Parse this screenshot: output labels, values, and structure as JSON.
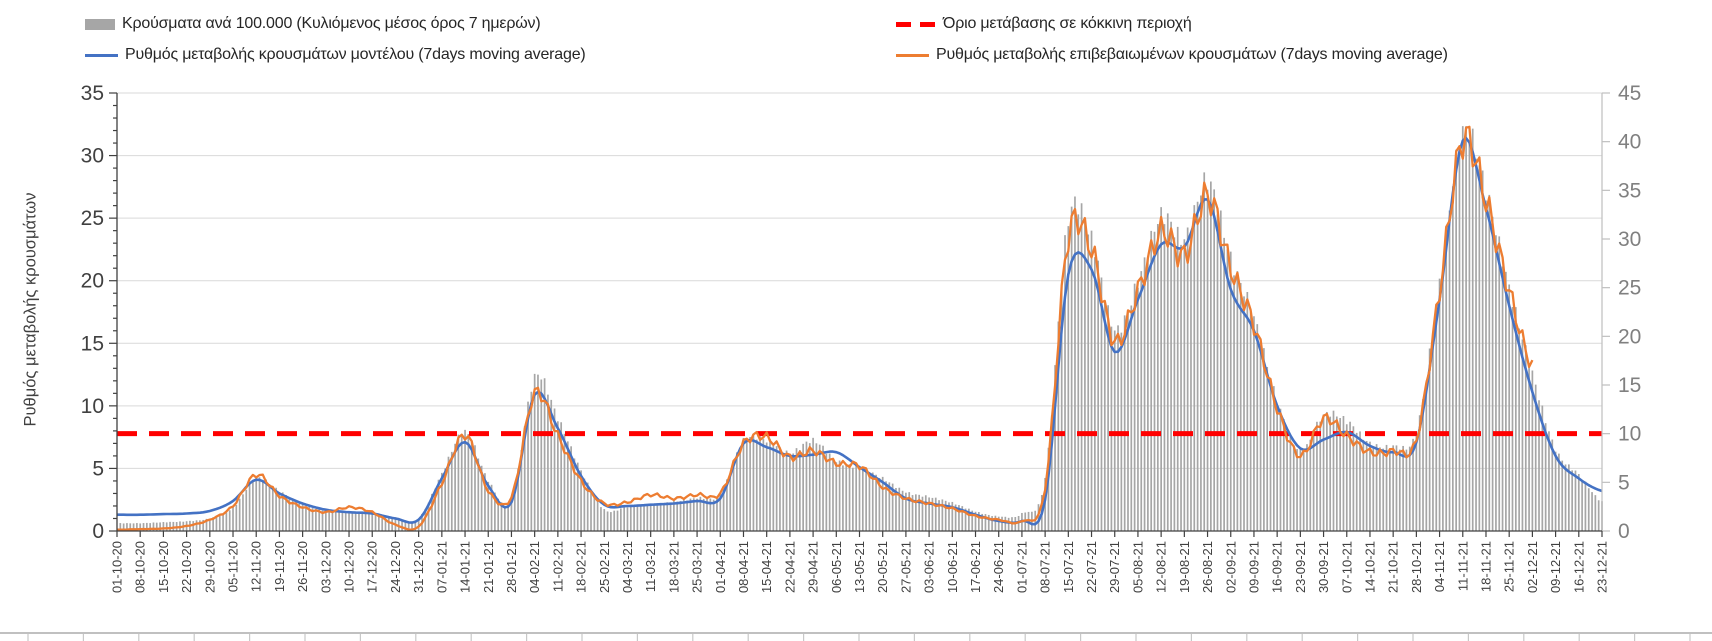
{
  "page": {
    "background": "#FFFFFF"
  },
  "legend": {
    "items": [
      {
        "label": "Κρούσματα ανά 100.000 (Κυλιόμενος μέσος όρος 7 ημερών)",
        "swatch": "bar",
        "color": "#A6A6A6"
      },
      {
        "label": "Όριο μετάβασης σε κόκκινη περιοχή",
        "swatch": "dashed-line",
        "color": "#FF0000"
      },
      {
        "label": "Ρυθμός μεταβολής κρουσμάτων μοντέλου (7days moving average)",
        "swatch": "line",
        "color": "#4472C4"
      },
      {
        "label": "Ρυθμός μεταβολής επιβεβαιωμένων κρουσμάτων (7days moving average)",
        "swatch": "line",
        "color": "#ED7D31"
      }
    ]
  },
  "chart_data": {
    "type": "combo",
    "title": "",
    "grid": "horizontal gridlines at left-axis steps of 5, color #D9D9D9",
    "legend_position": "top, two columns",
    "y_left": {
      "title": "Ρυθμός μεταβολής κρουσμάτων",
      "min": 0,
      "max": 35,
      "major_step": 5,
      "minor_step": 1,
      "tick_labels": [
        "0",
        "5",
        "10",
        "15",
        "20",
        "25",
        "30",
        "35"
      ],
      "label_color": "#404040"
    },
    "y_right": {
      "min": 0,
      "max": 45,
      "major_step": 5,
      "tick_labels": [
        "0",
        "5",
        "10",
        "15",
        "20",
        "25",
        "30",
        "35",
        "40",
        "45"
      ],
      "label_color": "#808080"
    },
    "threshold_line": {
      "label": "Όριο μετάβασης σε κόκκινη περιοχή",
      "axis": "right",
      "value": 10,
      "color": "#FF0000",
      "style": "dashed"
    },
    "x": {
      "tick_labels": [
        "01-10-20",
        "08-10-20",
        "15-10-20",
        "22-10-20",
        "29-10-20",
        "05-11-20",
        "12-11-20",
        "19-11-20",
        "26-11-20",
        "03-12-20",
        "10-12-20",
        "17-12-20",
        "24-12-20",
        "31-12-20",
        "07-01-21",
        "14-01-21",
        "21-01-21",
        "28-01-21",
        "04-02-21",
        "11-02-21",
        "18-02-21",
        "25-02-21",
        "04-03-21",
        "11-03-21",
        "18-03-21",
        "25-03-21",
        "01-04-21",
        "08-04-21",
        "15-04-21",
        "22-04-21",
        "29-04-21",
        "06-05-21",
        "13-05-21",
        "20-05-21",
        "27-05-21",
        "03-06-21",
        "10-06-21",
        "17-06-21",
        "24-06-21",
        "01-07-21",
        "08-07-21",
        "15-07-21",
        "22-07-21",
        "29-07-21",
        "05-08-21",
        "12-08-21",
        "19-08-21",
        "26-08-21",
        "02-09-21",
        "09-09-21",
        "16-09-21",
        "23-09-21",
        "30-09-21",
        "07-10-21",
        "14-10-21",
        "21-10-21",
        "28-10-21",
        "04-11-21",
        "11-11-21",
        "18-11-21",
        "25-11-21",
        "02-12-21",
        "09-12-21",
        "16-12-21",
        "23-12-21"
      ],
      "note": "weekly ticks, daily bars in between, labels rotated 90deg reading bottom-to-top"
    },
    "sampling": "series values estimated at each weekly tick; chart renders smooth daily interpolation",
    "series": [
      {
        "name": "Κρούσματα ανά 100.000 (Κυλιόμενος μέσος όρος 7 ημερών)",
        "type": "bar",
        "axis": "right",
        "color": "#A6A6A6",
        "values": [
          0.8,
          0.8,
          0.9,
          1.0,
          1.3,
          2.4,
          5.4,
          4.1,
          2.7,
          2.1,
          1.9,
          1.8,
          1.4,
          1.3,
          5.9,
          10.2,
          5.2,
          3.2,
          15.8,
          11.6,
          6.2,
          2.2,
          2.5,
          2.7,
          3.0,
          3.4,
          3.8,
          9.3,
          9.3,
          8.0,
          9.3,
          7.2,
          6.5,
          5.4,
          4.0,
          3.5,
          2.9,
          2.0,
          1.5,
          1.8,
          5.5,
          32.0,
          30.0,
          20.7,
          25.6,
          32.4,
          30.0,
          36.0,
          28.0,
          22.0,
          13.4,
          8.2,
          11.9,
          11.3,
          9.0,
          8.7,
          10.2,
          25.5,
          41.0,
          35.0,
          25.0,
          16.2,
          8.4,
          5.8,
          3.0
        ]
      },
      {
        "name": "Ρυθμός μεταβολής κρουσμάτων μοντέλου (7days moving average)",
        "type": "line",
        "axis": "left",
        "color": "#4472C4",
        "values": [
          1.3,
          1.3,
          1.35,
          1.4,
          1.6,
          2.4,
          4.1,
          3.0,
          2.2,
          1.7,
          1.5,
          1.4,
          1.0,
          0.9,
          4.2,
          7.1,
          3.6,
          2.3,
          10.9,
          8.2,
          4.4,
          2.1,
          2.0,
          2.1,
          2.2,
          2.4,
          2.6,
          7.0,
          6.7,
          6.0,
          6.1,
          6.3,
          5.1,
          3.9,
          2.6,
          2.2,
          1.9,
          1.3,
          0.8,
          0.8,
          2.5,
          20.5,
          20.9,
          14.3,
          18.5,
          22.9,
          22.7,
          26.5,
          19.3,
          16.0,
          10.0,
          6.6,
          7.3,
          7.9,
          6.8,
          6.3,
          7.1,
          18.5,
          31.2,
          25.8,
          18.0,
          11.1,
          6.0,
          4.2,
          3.2
        ]
      },
      {
        "name": "Ρυθμός μεταβολής επιβεβαιωμένων κρουσμάτων (7days moving average)",
        "type": "line",
        "axis": "left",
        "color": "#ED7D31",
        "values": [
          0.1,
          0.15,
          0.2,
          0.4,
          0.9,
          2.0,
          4.5,
          2.8,
          1.9,
          1.5,
          1.9,
          1.5,
          0.5,
          0.35,
          3.8,
          7.7,
          3.2,
          2.7,
          11.0,
          7.6,
          4.0,
          2.2,
          2.3,
          2.9,
          2.6,
          2.9,
          3.0,
          7.0,
          7.5,
          5.9,
          6.4,
          5.4,
          5.2,
          3.5,
          2.6,
          2.2,
          1.8,
          1.2,
          0.9,
          0.8,
          3.4,
          23.5,
          22.5,
          15.1,
          19.2,
          23.9,
          22.0,
          26.8,
          21.0,
          16.5,
          9.8,
          6.0,
          9.0,
          7.6,
          6.3,
          6.4,
          7.3,
          19.2,
          31.3,
          26.4,
          19.2,
          13.2,
          null,
          null,
          null
        ]
      }
    ],
    "texture": {
      "bar_jitter_rel": 0.03,
      "confirmed_wiggle_rel": 0.05
    },
    "colors": {
      "grid": "#D9D9D9",
      "axis_dark": "#404040",
      "axis_light": "#BFBFBF",
      "x_label": "#404040",
      "bottom_strip_line": "#ABABAB",
      "bottom_strip_tick": "#C8C8C8"
    }
  }
}
